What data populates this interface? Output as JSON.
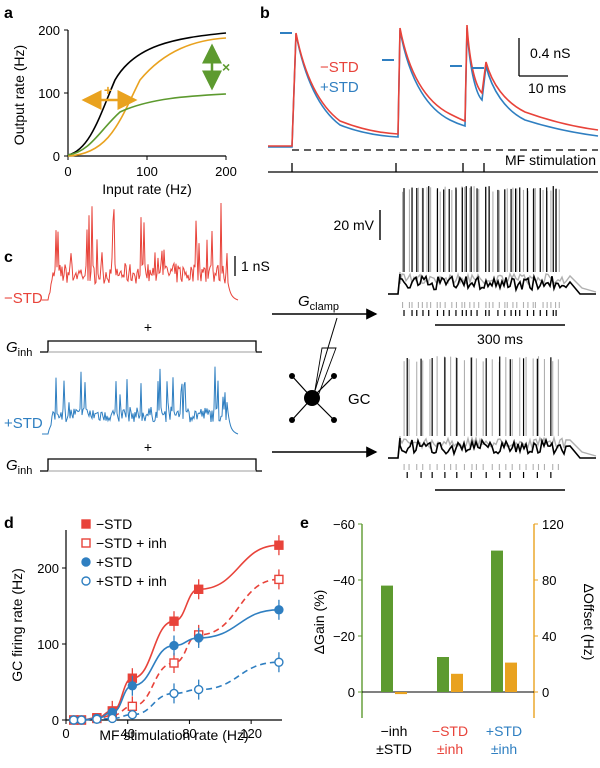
{
  "panels": {
    "a": "a",
    "b": "b",
    "c": "c",
    "d": "d",
    "e": "e"
  },
  "colors": {
    "red": "#e8433a",
    "blue": "#2f7fc1",
    "green": "#5d9a2f",
    "orange": "#e9a21f",
    "gray": "#b0b0b0"
  },
  "panel_a": {
    "xlabel": "Input rate (Hz)",
    "ylabel": "Output rate (Hz)",
    "xticks": [
      "0",
      "100",
      "200"
    ],
    "yticks": [
      "0",
      "100",
      "200"
    ],
    "plus": "+",
    "times": "×"
  },
  "panel_b": {
    "legend_minus": "−STD",
    "legend_plus": "+STD",
    "scale_ns": "0.4 nS",
    "scale_ms": "10 ms",
    "stim_label": "MF stimulation"
  },
  "panel_c": {
    "minus_std": "−STD",
    "plus_std": "+STD",
    "scale_1ns": "1 nS",
    "g_inh_top": "G",
    "g_inh_top_sub": "inh",
    "g_inh_bottom": "G",
    "g_inh_bottom_sub": "inh",
    "plus_top": "+",
    "plus_bottom": "+",
    "g_clamp": "G",
    "g_clamp_sub": "clamp",
    "gc": "GC",
    "scale_20mv": "20 mV",
    "scale_300ms": "300 ms"
  },
  "chart_data": [
    {
      "type": "line",
      "panel": "d",
      "xlabel": "MF stimulation rate (Hz)",
      "ylabel": "GC firing rate (Hz)",
      "xlim": [
        0,
        140
      ],
      "ylim": [
        0,
        250
      ],
      "xticks": [
        "0",
        "40",
        "80",
        "120"
      ],
      "yticks": [
        "0",
        "100",
        "200"
      ],
      "legend": "top-left",
      "x": [
        5,
        10,
        20,
        30,
        43,
        70,
        86,
        138
      ],
      "series": [
        {
          "name": "−STD",
          "color": "#e8433a",
          "marker": "filled-square",
          "dash": false,
          "values": [
            0,
            0,
            3,
            12,
            55,
            130,
            172,
            230
          ]
        },
        {
          "name": "−STD + inh",
          "color": "#e8433a",
          "marker": "open-square",
          "dash": true,
          "values": [
            0,
            0,
            2,
            6,
            18,
            75,
            112,
            185
          ]
        },
        {
          "name": "+STD",
          "color": "#2f7fc1",
          "marker": "filled-circle",
          "dash": false,
          "values": [
            0,
            0,
            2,
            10,
            45,
            98,
            108,
            145
          ]
        },
        {
          "name": "+STD + inh",
          "color": "#2f7fc1",
          "marker": "open-circle",
          "dash": true,
          "values": [
            0,
            0,
            1,
            2,
            7,
            35,
            40,
            76
          ]
        }
      ]
    },
    {
      "type": "bar",
      "panel": "e",
      "ylabel_left": "ΔGain (%)",
      "ylabel_right": "ΔOffset (Hz)",
      "ylim_left": [
        0,
        -60
      ],
      "ylim_right": [
        0,
        120
      ],
      "yticks_left": [
        "0",
        "−20",
        "−40",
        "−60"
      ],
      "yticks_right": [
        "0",
        "40",
        "80",
        "120"
      ],
      "categories": [
        {
          "line1": "−inh",
          "line2": "±STD",
          "color": "#000000"
        },
        {
          "line1": "−STD",
          "line2": "±inh",
          "color": "#e8433a"
        },
        {
          "line1": "+STD",
          "line2": "±inh",
          "color": "#2f7fc1"
        }
      ],
      "series": [
        {
          "axis": "left",
          "color": "#5d9a2f",
          "values": [
            -38,
            -12.5,
            -50.5
          ]
        },
        {
          "axis": "right",
          "color": "#e9a21f",
          "values": [
            -1.5,
            13,
            21
          ]
        }
      ]
    }
  ]
}
